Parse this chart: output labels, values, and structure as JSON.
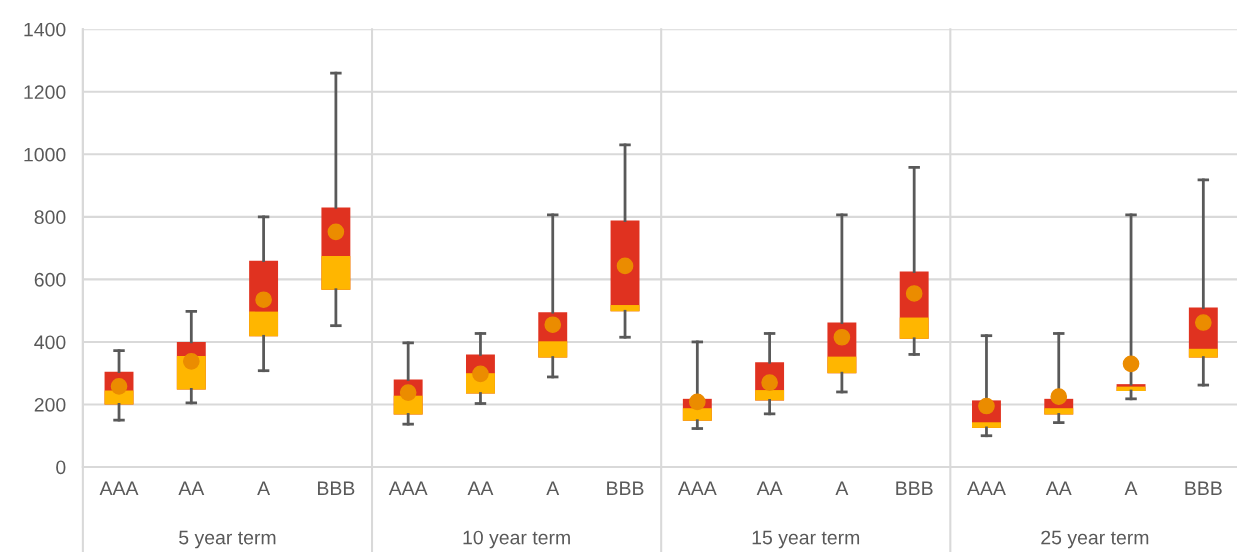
{
  "chart_data": {
    "type": "box",
    "categories": [
      "AAA",
      "AA",
      "A",
      "BBB",
      "AAA",
      "AA",
      "A",
      "BBB",
      "AAA",
      "AA",
      "A",
      "BBB",
      "AAA",
      "AA",
      "A",
      "BBB"
    ],
    "annotations": [
      "5 year term",
      "10 year term",
      "15 year term",
      "25 year term"
    ],
    "series": [
      {
        "color": "#e03220",
        "boxes": [
          {
            "low": 150,
            "q1": 200,
            "median": 245,
            "q3": 305,
            "high": 372,
            "mean": 258
          },
          {
            "low": 205,
            "q1": 248,
            "median": 355,
            "q3": 400,
            "high": 498,
            "mean": 338
          },
          {
            "low": 308,
            "q1": 418,
            "median": 497,
            "q3": 660,
            "high": 800,
            "mean": 535
          },
          {
            "low": 452,
            "q1": 567,
            "median": 675,
            "q3": 830,
            "high": 1260,
            "mean": 752
          },
          {
            "low": 137,
            "q1": 168,
            "median": 228,
            "q3": 280,
            "high": 397,
            "mean": 238
          },
          {
            "low": 203,
            "q1": 235,
            "median": 300,
            "q3": 360,
            "high": 427,
            "mean": 298
          },
          {
            "low": 288,
            "q1": 350,
            "median": 402,
            "q3": 495,
            "high": 806,
            "mean": 455
          },
          {
            "low": 415,
            "q1": 498,
            "median": 518,
            "q3": 788,
            "high": 1030,
            "mean": 643
          },
          {
            "low": 123,
            "q1": 148,
            "median": 188,
            "q3": 218,
            "high": 400,
            "mean": 208
          },
          {
            "low": 170,
            "q1": 213,
            "median": 246,
            "q3": 335,
            "high": 427,
            "mean": 270
          },
          {
            "low": 240,
            "q1": 300,
            "median": 353,
            "q3": 462,
            "high": 806,
            "mean": 415
          },
          {
            "low": 360,
            "q1": 410,
            "median": 478,
            "q3": 625,
            "high": 958,
            "mean": 555
          },
          {
            "low": 100,
            "q1": 125,
            "median": 143,
            "q3": 213,
            "high": 420,
            "mean": 195
          },
          {
            "low": 142,
            "q1": 168,
            "median": 188,
            "q3": 218,
            "high": 427,
            "mean": 225
          },
          {
            "low": 218,
            "q1": 243,
            "median": 257,
            "q3": 265,
            "high": 806,
            "mean": 330
          },
          {
            "low": 262,
            "q1": 350,
            "median": 378,
            "q3": 510,
            "high": 918,
            "mean": 462
          }
        ]
      }
    ],
    "ylim": [
      0,
      1400
    ],
    "yticks": [
      0,
      200,
      400,
      600,
      800,
      1000,
      1200,
      1400
    ],
    "grid": "y",
    "marker": "circle"
  }
}
